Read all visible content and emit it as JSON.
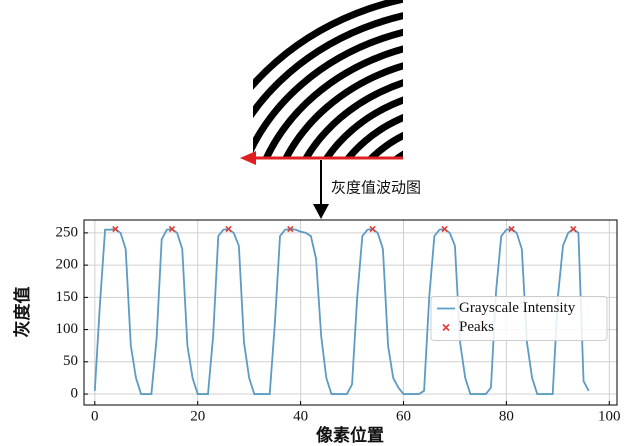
{
  "chart_data": {
    "type": "line",
    "annotation": "灰度值波动图",
    "xlabel": "像素位置",
    "ylabel": "灰度值",
    "xlim": [
      -2.1,
      101.5
    ],
    "ylim": [
      -17,
      270
    ],
    "xticks": [
      0,
      20,
      40,
      60,
      80,
      100
    ],
    "yticks": [
      0,
      50,
      100,
      150,
      200,
      250
    ],
    "grid": true,
    "legend": "center right",
    "series": [
      {
        "name": "Grayscale Intensity",
        "color": "#5b9bc4",
        "x": [
          0,
          1,
          2,
          3,
          4,
          5,
          6,
          7,
          8,
          9,
          10,
          11,
          12,
          13,
          14,
          15,
          16,
          17,
          18,
          19,
          20,
          21,
          22,
          23,
          24,
          25,
          26,
          27,
          28,
          29,
          30,
          31,
          32,
          33,
          34,
          35,
          36,
          37,
          38,
          39,
          40,
          41,
          42,
          43,
          44,
          45,
          46,
          47,
          48,
          49,
          50,
          51,
          52,
          53,
          54,
          55,
          56,
          57,
          58,
          59,
          60,
          61,
          62,
          63,
          64,
          65,
          66,
          67,
          68,
          69,
          70,
          71,
          72,
          73,
          74,
          75,
          76,
          77,
          78,
          79,
          80,
          81,
          82,
          83,
          84,
          85,
          86,
          87,
          88,
          89,
          90,
          91,
          92,
          93,
          94,
          95,
          96
        ],
        "values": [
          5,
          140,
          255,
          255,
          256,
          250,
          225,
          75,
          25,
          0,
          0,
          0,
          85,
          240,
          255,
          256,
          250,
          225,
          75,
          25,
          0,
          0,
          0,
          90,
          245,
          255,
          256,
          250,
          230,
          80,
          25,
          0,
          0,
          0,
          0,
          110,
          245,
          255,
          256,
          255,
          252,
          250,
          245,
          210,
          90,
          25,
          0,
          0,
          0,
          0,
          15,
          150,
          245,
          255,
          256,
          250,
          225,
          75,
          25,
          10,
          0,
          0,
          0,
          0,
          5,
          150,
          245,
          255,
          256,
          250,
          230,
          80,
          25,
          0,
          0,
          0,
          0,
          10,
          160,
          245,
          255,
          256,
          250,
          225,
          80,
          25,
          0,
          0,
          0,
          0,
          150,
          230,
          250,
          256,
          250,
          20,
          5
        ]
      },
      {
        "name": "Peaks",
        "type": "scatter",
        "color": "#e0403a",
        "x": [
          4,
          15,
          26,
          38,
          54,
          68,
          81,
          93
        ],
        "values": [
          256,
          256,
          256,
          256,
          256,
          256,
          256,
          256
        ]
      }
    ]
  }
}
